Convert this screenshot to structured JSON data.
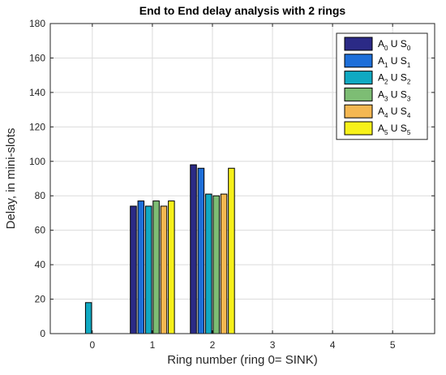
{
  "chart_data": {
    "type": "bar",
    "title": "End to End delay analysis with  2 rings",
    "xlabel": "Ring number (ring 0= SINK)",
    "ylabel": "Delay, in mini-slots",
    "categories": [
      "0",
      "1",
      "2",
      "3",
      "4",
      "5"
    ],
    "xlim": [
      -0.7,
      5.7
    ],
    "ylim": [
      0,
      180
    ],
    "yticks": [
      0,
      20,
      40,
      60,
      80,
      100,
      120,
      140,
      160,
      180
    ],
    "grid": true,
    "legend_position": "top-right",
    "series": [
      {
        "name": "A0 U S0",
        "label_parts": [
          "A",
          "0",
          " U S",
          "0"
        ],
        "color": "#2b2a86",
        "values": [
          0,
          74,
          98,
          0,
          0,
          0
        ]
      },
      {
        "name": "A1 U S1",
        "label_parts": [
          "A",
          "1",
          " U S",
          "1"
        ],
        "color": "#1e6fd9",
        "values": [
          0,
          77,
          96,
          0,
          0,
          0
        ]
      },
      {
        "name": "A2 U S2",
        "label_parts": [
          "A",
          "2",
          " U S",
          "2"
        ],
        "color": "#10a9c2",
        "values": [
          18,
          74,
          81,
          0,
          0,
          0
        ]
      },
      {
        "name": "A3 U S3",
        "label_parts": [
          "A",
          "3",
          " U S",
          "3"
        ],
        "color": "#7dbd74",
        "values": [
          0,
          77,
          80,
          0,
          0,
          0
        ]
      },
      {
        "name": "A4 U S4",
        "label_parts": [
          "A",
          "4",
          " U S",
          "4"
        ],
        "color": "#f4b751",
        "values": [
          0,
          74,
          81,
          0,
          0,
          0
        ]
      },
      {
        "name": "A5 U S5",
        "label_parts": [
          "A",
          "5",
          " U S",
          "5"
        ],
        "color": "#f7f11a",
        "values": [
          0,
          77,
          96,
          0,
          0,
          0
        ]
      }
    ]
  }
}
